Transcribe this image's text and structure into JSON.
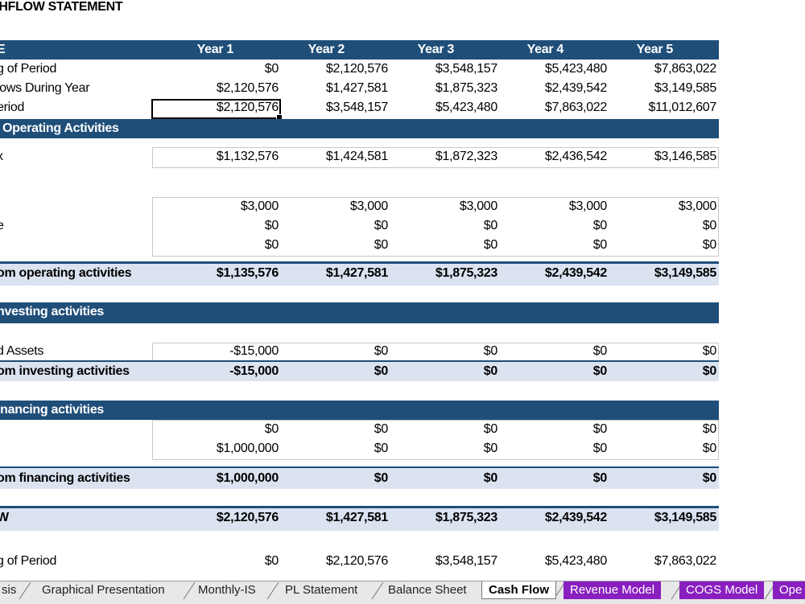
{
  "title": "SHFLOW STATEMENT",
  "header": {
    "label": "E",
    "years": [
      "Year 1",
      "Year 2",
      "Year 3",
      "Year 4",
      "Year 5"
    ]
  },
  "summary": [
    {
      "label": "g of Period",
      "values": [
        "$0",
        "$2,120,576",
        "$3,548,157",
        "$5,423,480",
        "$7,863,022"
      ]
    },
    {
      "label": "lows During Year",
      "values": [
        "$2,120,576",
        "$1,427,581",
        "$1,875,323",
        "$2,439,542",
        "$3,149,585"
      ]
    },
    {
      "label": "eriod",
      "values": [
        "$2,120,576",
        "$3,548,157",
        "$5,423,480",
        "$7,863,022",
        "$11,012,607"
      ]
    }
  ],
  "operating": {
    "header": "Operating Activities",
    "row1": {
      "label": "x",
      "values": [
        "$1,132,576",
        "$1,424,581",
        "$1,872,323",
        "$2,436,542",
        "$3,146,585"
      ]
    },
    "row2": {
      "label": "",
      "values": [
        "$3,000",
        "$3,000",
        "$3,000",
        "$3,000",
        "$3,000"
      ]
    },
    "row3": {
      "label": "e",
      "values": [
        "$0",
        "$0",
        "$0",
        "$0",
        "$0"
      ]
    },
    "row4": {
      "label": "",
      "values": [
        "$0",
        "$0",
        "$0",
        "$0",
        "$0"
      ]
    },
    "total": {
      "label": "om operating activities",
      "values": [
        "$1,135,576",
        "$1,427,581",
        "$1,875,323",
        "$2,439,542",
        "$3,149,585"
      ]
    }
  },
  "investing": {
    "header": "nvesting activities",
    "row1": {
      "label": "d Assets",
      "values": [
        "-$15,000",
        "$0",
        "$0",
        "$0",
        "$0"
      ]
    },
    "total": {
      "label": "om investing activities",
      "values": [
        "-$15,000",
        "$0",
        "$0",
        "$0",
        "$0"
      ]
    }
  },
  "financing": {
    "header": "inancing activities",
    "row1": {
      "label": "",
      "values": [
        "$0",
        "$0",
        "$0",
        "$0",
        "$0"
      ]
    },
    "row2": {
      "label": "",
      "values": [
        "$1,000,000",
        "$0",
        "$0",
        "$0",
        "$0"
      ]
    },
    "total": {
      "label": "om financing activities",
      "values": [
        "$1,000,000",
        "$0",
        "$0",
        "$0",
        "$0"
      ]
    }
  },
  "netflow": {
    "label": "W",
    "values": [
      "$2,120,576",
      "$1,427,581",
      "$1,875,323",
      "$2,439,542",
      "$3,149,585"
    ]
  },
  "bottom": {
    "label": "g of Period",
    "values": [
      "$0",
      "$2,120,576",
      "$3,548,157",
      "$5,423,480",
      "$7,863,022"
    ]
  },
  "tabs": [
    {
      "label": "sis"
    },
    {
      "label": "Graphical Presentation"
    },
    {
      "label": "Monthly-IS"
    },
    {
      "label": "PL Statement"
    },
    {
      "label": "Balance Sheet"
    },
    {
      "label": "Cash Flow"
    },
    {
      "label": "Revenue Model"
    },
    {
      "label": "COGS Model"
    },
    {
      "label": "Ope"
    }
  ]
}
